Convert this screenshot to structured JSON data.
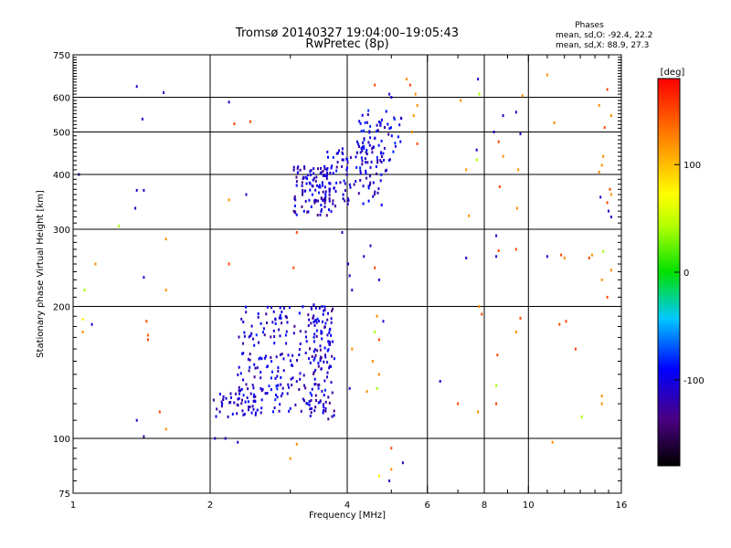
{
  "chart_data": {
    "type": "scatter",
    "title": "Tromsø 20140327 19:04:00–19:05:43",
    "subtitle": "RwPretec (8p)",
    "stats": {
      "heading": "Phases",
      "line1": "mean, sd,O: -92.4, 22.2",
      "line2": "mean, sd,X:  88.9, 27.3"
    },
    "xlabel": "Frequency [MHz]",
    "ylabel": "Stationary phase Virtual Height [km]",
    "xscale": "log",
    "yscale": "log",
    "xlim": [
      1,
      16
    ],
    "ylim": [
      75,
      750
    ],
    "xticks": [
      1,
      2,
      4,
      6,
      8,
      10,
      16
    ],
    "xtick_labels": [
      "1",
      "2",
      "4",
      "6",
      "8",
      "10",
      "16"
    ],
    "yticks": [
      75,
      100,
      200,
      300,
      400,
      500,
      600,
      750
    ],
    "ytick_labels": [
      "75",
      "100",
      "200",
      "300",
      "400",
      "500",
      "600",
      "750"
    ],
    "grid_x": [
      2,
      4,
      6,
      8,
      10
    ],
    "grid_y": [
      100,
      200,
      300,
      400,
      500,
      600
    ],
    "grid": true,
    "colorbar": {
      "label": "[deg]",
      "range": [
        -180,
        180
      ],
      "ticks": [
        100,
        0,
        -100
      ],
      "tick_labels": [
        "100",
        "0",
        "-100"
      ],
      "colormap": "rainbow"
    },
    "points": [
      [
        1.38,
        635,
        -110
      ],
      [
        1.42,
        535,
        -110
      ],
      [
        1.58,
        615,
        -110
      ],
      [
        1.03,
        400,
        -120
      ],
      [
        1.37,
        335,
        -110
      ],
      [
        1.43,
        368,
        -110
      ],
      [
        1.38,
        368,
        -110
      ],
      [
        1.26,
        305,
        40
      ],
      [
        1.6,
        285,
        120
      ],
      [
        1.43,
        233,
        -110
      ],
      [
        1.12,
        250,
        120
      ],
      [
        1.06,
        218,
        40
      ],
      [
        1.6,
        218,
        120
      ],
      [
        1.05,
        187,
        80
      ],
      [
        1.1,
        182,
        -110
      ],
      [
        1.45,
        185,
        150
      ],
      [
        1.05,
        175,
        120
      ],
      [
        1.46,
        172,
        140
      ],
      [
        1.46,
        168,
        150
      ],
      [
        1.38,
        110,
        -110
      ],
      [
        1.6,
        105,
        120
      ],
      [
        1.55,
        115,
        150
      ],
      [
        1.43,
        101,
        -130
      ],
      [
        2.2,
        585,
        -110
      ],
      [
        2.26,
        522,
        150
      ],
      [
        2.45,
        528,
        150
      ],
      [
        2.4,
        360,
        -110
      ],
      [
        2.2,
        350,
        120
      ],
      [
        2.2,
        250,
        150
      ],
      [
        3.05,
        245,
        150
      ],
      [
        3.1,
        295,
        150
      ],
      [
        2.05,
        100,
        -110
      ],
      [
        2.16,
        100,
        -110
      ],
      [
        2.3,
        98,
        -110
      ],
      [
        3.0,
        90,
        120
      ],
      [
        3.1,
        97,
        120
      ],
      [
        4.6,
        640,
        150
      ],
      [
        4.95,
        610,
        -110
      ],
      [
        5.0,
        600,
        -110
      ],
      [
        5.4,
        660,
        120
      ],
      [
        5.5,
        640,
        150
      ],
      [
        5.65,
        610,
        120
      ],
      [
        5.7,
        575,
        120
      ],
      [
        5.6,
        545,
        120
      ],
      [
        5.55,
        500,
        120
      ],
      [
        5.7,
        470,
        150
      ],
      [
        3.9,
        295,
        -110
      ],
      [
        4.02,
        250,
        -110
      ],
      [
        4.05,
        235,
        -110
      ],
      [
        4.1,
        218,
        -110
      ],
      [
        4.35,
        260,
        -110
      ],
      [
        4.5,
        275,
        -110
      ],
      [
        4.6,
        245,
        150
      ],
      [
        4.7,
        230,
        -110
      ],
      [
        4.05,
        130,
        -110
      ],
      [
        4.1,
        160,
        120
      ],
      [
        4.42,
        128,
        120
      ],
      [
        4.55,
        150,
        120
      ],
      [
        4.7,
        168,
        150
      ],
      [
        4.7,
        140,
        120
      ],
      [
        4.65,
        130,
        40
      ],
      [
        4.8,
        185,
        -110
      ],
      [
        4.65,
        190,
        120
      ],
      [
        4.6,
        175,
        40
      ],
      [
        5.0,
        95,
        150
      ],
      [
        5.3,
        88,
        -110
      ],
      [
        5.0,
        85,
        120
      ],
      [
        4.7,
        82,
        80
      ],
      [
        4.95,
        80,
        -110
      ],
      [
        6.4,
        135,
        -110
      ],
      [
        7.1,
        590,
        120
      ],
      [
        7.75,
        660,
        -110
      ],
      [
        7.8,
        610,
        40
      ],
      [
        7.7,
        455,
        -110
      ],
      [
        7.7,
        432,
        40
      ],
      [
        7.3,
        410,
        120
      ],
      [
        7.4,
        322,
        120
      ],
      [
        7.3,
        258,
        -110
      ],
      [
        8.4,
        500,
        -110
      ],
      [
        8.6,
        475,
        150
      ],
      [
        8.8,
        440,
        120
      ],
      [
        8.65,
        375,
        150
      ],
      [
        8.8,
        545,
        -110
      ],
      [
        9.4,
        555,
        -110
      ],
      [
        9.7,
        605,
        120
      ],
      [
        9.6,
        495,
        -110
      ],
      [
        9.5,
        410,
        120
      ],
      [
        9.45,
        335,
        120
      ],
      [
        8.5,
        290,
        -110
      ],
      [
        8.6,
        268,
        150
      ],
      [
        9.4,
        270,
        150
      ],
      [
        8.5,
        260,
        -110
      ],
      [
        9.6,
        188,
        150
      ],
      [
        9.4,
        175,
        120
      ],
      [
        8.55,
        155,
        150
      ],
      [
        8.5,
        120,
        150
      ],
      [
        7.8,
        200,
        120
      ],
      [
        7.9,
        192,
        150
      ],
      [
        8.5,
        132,
        40
      ],
      [
        7.0,
        120,
        150
      ],
      [
        7.75,
        115,
        120
      ],
      [
        11.0,
        675,
        120
      ],
      [
        11.4,
        525,
        120
      ],
      [
        11.0,
        260,
        -110
      ],
      [
        11.8,
        262,
        150
      ],
      [
        12.0,
        258,
        120
      ],
      [
        11.7,
        182,
        150
      ],
      [
        12.7,
        160,
        150
      ],
      [
        12.1,
        185,
        150
      ],
      [
        13.6,
        258,
        150
      ],
      [
        13.1,
        112,
        40
      ],
      [
        14.3,
        575,
        120
      ],
      [
        14.7,
        512,
        150
      ],
      [
        14.9,
        625,
        150
      ],
      [
        15.2,
        545,
        120
      ],
      [
        14.6,
        440,
        120
      ],
      [
        14.5,
        420,
        120
      ],
      [
        14.4,
        355,
        -110
      ],
      [
        14.9,
        345,
        150
      ],
      [
        15.2,
        360,
        120
      ],
      [
        15.0,
        330,
        -110
      ],
      [
        15.2,
        320,
        -110
      ],
      [
        14.6,
        267,
        40
      ],
      [
        14.5,
        230,
        120
      ],
      [
        15.2,
        242,
        120
      ],
      [
        14.9,
        210,
        150
      ],
      [
        14.5,
        125,
        120
      ],
      [
        14.5,
        120,
        120
      ],
      [
        13.8,
        262,
        120
      ],
      [
        14.3,
        405,
        120
      ],
      [
        15.1,
        370,
        150
      ],
      [
        11.3,
        98,
        120
      ]
    ],
    "clusters": [
      {
        "x": [
          3.05,
          3.8
        ],
        "y": [
          322,
          420
        ],
        "phase": -110,
        "n": 110,
        "seed": 11
      },
      {
        "x": [
          3.55,
          4.9
        ],
        "y": [
          340,
          470
        ],
        "phase": -105,
        "n": 110,
        "seed": 23
      },
      {
        "x": [
          4.2,
          5.3
        ],
        "y": [
          420,
          560
        ],
        "phase": -100,
        "n": 60,
        "seed": 37
      },
      {
        "x": [
          2.0,
          2.6
        ],
        "y": [
          112,
          128
        ],
        "phase": -110,
        "n": 45,
        "seed": 41
      },
      {
        "x": [
          2.3,
          3.7
        ],
        "y": [
          115,
          200
        ],
        "phase": -105,
        "n": 230,
        "seed": 53
      },
      {
        "x": [
          3.3,
          3.75
        ],
        "y": [
          110,
          205
        ],
        "phase": -110,
        "n": 70,
        "seed": 67
      }
    ]
  }
}
